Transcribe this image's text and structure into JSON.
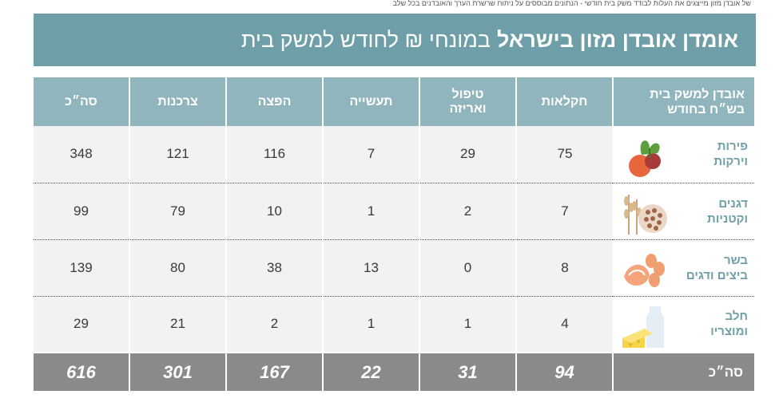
{
  "top_note": "של אובדן מזון מייצגים את העלות לבודד משק בית חודשי - הנתונים מבוססים על ניתוח שרשרת הערך והאובדנים בכל שלב",
  "title": {
    "bold": "אומדן אובדן מזון בישראל",
    "light": "במונחי ₪ לחודש למשק בית"
  },
  "table": {
    "header": {
      "category_line1": "אובדן למשק בית",
      "category_line2": "בש״ח בחודש",
      "agriculture": "חקלאות",
      "handling_line1": "טיפול",
      "handling_line2": "ואריזה",
      "industry": "תעשייה",
      "distribution": "הפצה",
      "consumption": "צרכנות",
      "total": "סה״כ"
    },
    "rows": [
      {
        "label1": "פירות",
        "label2": "וירקות",
        "icon": "vegetables-icon",
        "agriculture": "75",
        "handling": "29",
        "industry": "7",
        "distribution": "116",
        "consumption": "121",
        "total": "348"
      },
      {
        "label1": "דגנים",
        "label2": "וקטניות",
        "icon": "grains-icon",
        "agriculture": "7",
        "handling": "2",
        "industry": "1",
        "distribution": "10",
        "consumption": "79",
        "total": "99"
      },
      {
        "label1": "בשר",
        "label2": "ביצים ודגים",
        "icon": "meat-fish-icon",
        "agriculture": "8",
        "handling": "0",
        "industry": "13",
        "distribution": "38",
        "consumption": "80",
        "total": "139"
      },
      {
        "label1": "חלב",
        "label2": "ומוצריו",
        "icon": "dairy-icon",
        "agriculture": "4",
        "handling": "1",
        "industry": "1",
        "distribution": "2",
        "consumption": "21",
        "total": "29"
      }
    ],
    "totals": {
      "label": "סה״כ",
      "agriculture": "94",
      "handling": "31",
      "industry": "22",
      "distribution": "167",
      "consumption": "301",
      "total": "616"
    }
  },
  "colors": {
    "title_bg": "#6e9fa8",
    "header_bg": "#90b5bd",
    "cell_bg": "#f2f2f2",
    "total_bg": "#8a8a8a",
    "label_text": "#6e9fa8"
  }
}
